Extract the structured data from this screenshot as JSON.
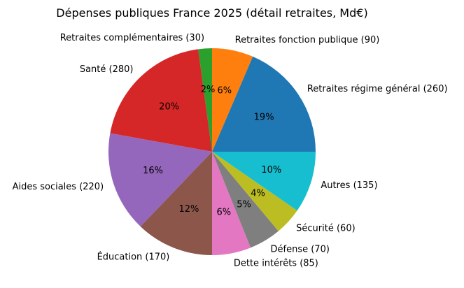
{
  "chart_data": {
    "type": "pie",
    "title": "Dépenses publiques France 2025 (détail retraites, Md€)",
    "start_angle_deg": 0,
    "direction": "counterclockwise",
    "slices": [
      {
        "label": "Retraites régime général (260)",
        "value": 260,
        "pct_label": "19%",
        "color": "#1f77b4"
      },
      {
        "label": "Retraites fonction publique (90)",
        "value": 90,
        "pct_label": "6%",
        "color": "#ff7f0e"
      },
      {
        "label": "Retraites complémentaires (30)",
        "value": 30,
        "pct_label": "2%",
        "color": "#2ca02c"
      },
      {
        "label": "Santé (280)",
        "value": 280,
        "pct_label": "20%",
        "color": "#d62728"
      },
      {
        "label": "Aides sociales (220)",
        "value": 220,
        "pct_label": "16%",
        "color": "#9467bd"
      },
      {
        "label": "Éducation (170)",
        "value": 170,
        "pct_label": "12%",
        "color": "#8c564b"
      },
      {
        "label": "Dette intérêts (85)",
        "value": 85,
        "pct_label": "6%",
        "color": "#e377c2"
      },
      {
        "label": "Défense (70)",
        "value": 70,
        "pct_label": "5%",
        "color": "#7f7f7f"
      },
      {
        "label": "Sécurité (60)",
        "value": 60,
        "pct_label": "4%",
        "color": "#bcbd22"
      },
      {
        "label": "Autres (135)",
        "value": 135,
        "pct_label": "10%",
        "color": "#17becf"
      }
    ]
  }
}
